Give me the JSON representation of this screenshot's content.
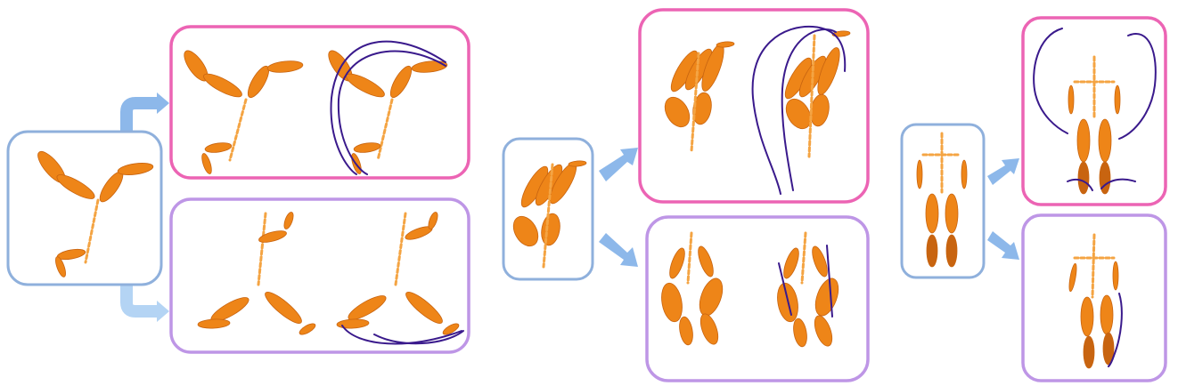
{
  "colors": {
    "figure": "#EE8518",
    "figure_dark": "#C86410",
    "joint": "#F4A443",
    "input_frame": "#8FB0DC",
    "pink_frame": "#EC64B4",
    "purple_frame": "#BE96E6",
    "arrow": "#8DB8EA",
    "arrow_light": "#B4D4F4",
    "trajectory": "#3A1A8C"
  },
  "groups": [
    {
      "input": {
        "label": "",
        "pose": "y-spread"
      },
      "outputs": [
        {
          "pose": "y-spread",
          "style": "pink",
          "trajectory": true
        },
        {
          "pose": "y-inverted",
          "style": "purple",
          "trajectory": true
        }
      ]
    },
    {
      "input": {
        "label": "",
        "pose": "crouch-folded"
      },
      "outputs": [
        {
          "pose": "crouch-folded",
          "style": "pink",
          "trajectory": true
        },
        {
          "pose": "squat",
          "style": "purple",
          "trajectory": true
        }
      ]
    },
    {
      "input": {
        "label": "",
        "pose": "standing"
      },
      "outputs": [
        {
          "pose": "standing-arms-up",
          "style": "pink",
          "trajectory": true
        },
        {
          "pose": "standing-step",
          "style": "purple",
          "trajectory": true
        }
      ]
    }
  ]
}
